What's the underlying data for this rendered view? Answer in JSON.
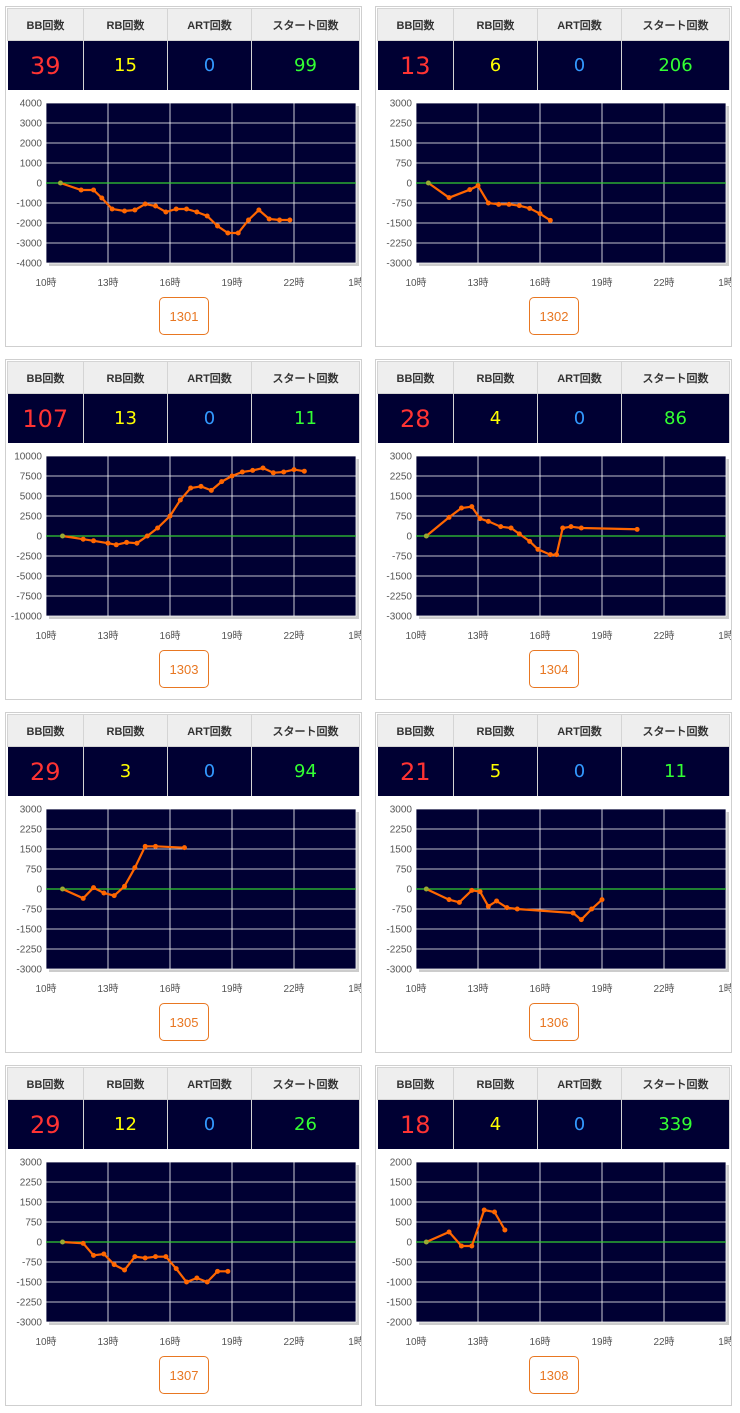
{
  "headers": {
    "bb": "BB回数",
    "rb": "RB回数",
    "art": "ART回数",
    "start": "スタート回数"
  },
  "x_ticks": [
    "10時",
    "13時",
    "16時",
    "19時",
    "22時",
    "1時"
  ],
  "colors": {
    "plot_bg": "#000033",
    "line": "#ff6600",
    "zero_line": "#33cc33",
    "bb": "#ff3333",
    "rb": "#ffff00",
    "art": "#3399ff",
    "start": "#33ff33"
  },
  "machines": [
    {
      "id": "1301",
      "bb": "39",
      "rb": "15",
      "art": "0",
      "start": "99",
      "y_ticks": [
        "4000",
        "3000",
        "2000",
        "1000",
        "0",
        "-1000",
        "-2000",
        "-3000",
        "-4000"
      ]
    },
    {
      "id": "1302",
      "bb": "13",
      "rb": "6",
      "art": "0",
      "start": "206",
      "y_ticks": [
        "3000",
        "2250",
        "1500",
        "750",
        "0",
        "-750",
        "-1500",
        "-2250",
        "-3000"
      ]
    },
    {
      "id": "1303",
      "bb": "107",
      "rb": "13",
      "art": "0",
      "start": "11",
      "y_ticks": [
        "10000",
        "7500",
        "5000",
        "2500",
        "0",
        "-2500",
        "-5000",
        "-7500",
        "-10000"
      ]
    },
    {
      "id": "1304",
      "bb": "28",
      "rb": "4",
      "art": "0",
      "start": "86",
      "y_ticks": [
        "3000",
        "2250",
        "1500",
        "750",
        "0",
        "-750",
        "-1500",
        "-2250",
        "-3000"
      ]
    },
    {
      "id": "1305",
      "bb": "29",
      "rb": "3",
      "art": "0",
      "start": "94",
      "y_ticks": [
        "3000",
        "2250",
        "1500",
        "750",
        "0",
        "-750",
        "-1500",
        "-2250",
        "-3000"
      ]
    },
    {
      "id": "1306",
      "bb": "21",
      "rb": "5",
      "art": "0",
      "start": "11",
      "y_ticks": [
        "3000",
        "2250",
        "1500",
        "750",
        "0",
        "-750",
        "-1500",
        "-2250",
        "-3000"
      ]
    },
    {
      "id": "1307",
      "bb": "29",
      "rb": "12",
      "art": "0",
      "start": "26",
      "y_ticks": [
        "3000",
        "2250",
        "1500",
        "750",
        "0",
        "-750",
        "-1500",
        "-2250",
        "-3000"
      ]
    },
    {
      "id": "1308",
      "bb": "18",
      "rb": "4",
      "art": "0",
      "start": "339",
      "y_ticks": [
        "2000",
        "1500",
        "1000",
        "500",
        "0",
        "-500",
        "-1000",
        "-1500",
        "-2000"
      ]
    }
  ],
  "chart_data": [
    {
      "type": "line",
      "x_axis": "hour",
      "x_ticks": [
        10,
        13,
        16,
        19,
        22,
        25
      ],
      "ylim": [
        -4000,
        4000
      ],
      "x": [
        10.7,
        11.7,
        12.3,
        12.7,
        13.2,
        13.8,
        14.3,
        14.8,
        15.3,
        15.8,
        16.3,
        16.8,
        17.3,
        17.8,
        18.3,
        18.8,
        19.3,
        19.8,
        20.3,
        20.8,
        21.3,
        21.8
      ],
      "y": [
        0,
        -350,
        -350,
        -750,
        -1300,
        -1400,
        -1350,
        -1050,
        -1150,
        -1450,
        -1300,
        -1300,
        -1450,
        -1650,
        -2150,
        -2500,
        -2500,
        -1850,
        -1350,
        -1800,
        -1850,
        -1850
      ]
    },
    {
      "type": "line",
      "x_axis": "hour",
      "x_ticks": [
        10,
        13,
        16,
        19,
        22,
        25
      ],
      "ylim": [
        -3000,
        3000
      ],
      "x": [
        10.6,
        11.6,
        12.6,
        13.0,
        13.5,
        14.0,
        14.5,
        15.0,
        15.5,
        16.0,
        16.5
      ],
      "y": [
        0,
        -550,
        -250,
        -100,
        -750,
        -800,
        -800,
        -850,
        -950,
        -1150,
        -1400
      ]
    },
    {
      "type": "line",
      "x_axis": "hour",
      "x_ticks": [
        10,
        13,
        16,
        19,
        22,
        25
      ],
      "ylim": [
        -10000,
        10000
      ],
      "x": [
        10.8,
        11.8,
        12.3,
        13.0,
        13.4,
        13.9,
        14.4,
        14.9,
        15.4,
        16.0,
        16.5,
        17.0,
        17.5,
        18.0,
        18.5,
        19.0,
        19.5,
        20.0,
        20.5,
        21.0,
        21.5,
        22.0,
        22.5
      ],
      "y": [
        0,
        -400,
        -600,
        -900,
        -1100,
        -800,
        -900,
        0,
        1000,
        2500,
        4500,
        6000,
        6200,
        5700,
        6800,
        7500,
        8000,
        8200,
        8500,
        7900,
        8000,
        8300,
        8100
      ],
      "x_points": [
        10.8,
        11.8,
        12.3,
        13.0,
        13.4,
        13.9,
        14.4,
        14.9,
        15.4,
        16.0,
        16.5,
        17.0,
        17.5,
        18.0,
        18.5,
        19.0,
        19.5,
        20.0,
        20.5,
        21.0,
        21.5,
        22.0,
        22.5
      ]
    },
    {
      "type": "line",
      "x_axis": "hour",
      "x_ticks": [
        10,
        13,
        16,
        19,
        22,
        25
      ],
      "ylim": [
        -3000,
        3000
      ],
      "x": [
        10.5,
        11.6,
        12.2,
        12.7,
        13.1,
        13.5,
        14.1,
        14.6,
        15.0,
        15.5,
        15.9,
        16.5,
        16.8,
        17.1,
        17.5,
        18.0,
        20.7
      ],
      "y": [
        0,
        700,
        1050,
        1100,
        650,
        550,
        350,
        300,
        80,
        -200,
        -500,
        -700,
        -700,
        300,
        350,
        300,
        250
      ]
    },
    {
      "type": "line",
      "x_axis": "hour",
      "x_ticks": [
        10,
        13,
        16,
        19,
        22,
        25
      ],
      "ylim": [
        -3000,
        3000
      ],
      "x": [
        10.8,
        11.8,
        12.3,
        12.8,
        13.3,
        13.8,
        14.3,
        14.8,
        15.3,
        16.7
      ],
      "y": [
        0,
        -350,
        50,
        -150,
        -250,
        100,
        800,
        1600,
        1600,
        1550
      ]
    },
    {
      "type": "line",
      "x_axis": "hour",
      "x_ticks": [
        10,
        13,
        16,
        19,
        22,
        25
      ],
      "ylim": [
        -3000,
        3000
      ],
      "x": [
        10.5,
        11.6,
        12.1,
        12.7,
        13.1,
        13.5,
        13.9,
        14.4,
        14.9,
        17.6,
        18.0,
        18.5,
        19.0
      ],
      "y": [
        0,
        -400,
        -500,
        -50,
        -100,
        -650,
        -450,
        -700,
        -750,
        -900,
        -1150,
        -750,
        -400
      ]
    },
    {
      "type": "line",
      "x_axis": "hour",
      "x_ticks": [
        10,
        13,
        16,
        19,
        22,
        25
      ],
      "ylim": [
        -3000,
        3000
      ],
      "x": [
        10.8,
        11.8,
        12.3,
        12.8,
        13.3,
        13.8,
        14.3,
        14.8,
        15.3,
        15.8,
        16.3,
        16.8,
        17.3,
        17.8,
        18.3,
        18.8
      ],
      "y": [
        0,
        -50,
        -500,
        -450,
        -850,
        -1050,
        -550,
        -600,
        -550,
        -550,
        -1000,
        -1500,
        -1350,
        -1500,
        -1100,
        -1100
      ]
    },
    {
      "type": "line",
      "x_axis": "hour",
      "x_ticks": [
        10,
        13,
        16,
        19,
        22,
        25
      ],
      "ylim": [
        -2000,
        2000
      ],
      "x": [
        10.5,
        11.6,
        12.2,
        12.7,
        13.3,
        13.8,
        14.3
      ],
      "y": [
        0,
        250,
        -100,
        -100,
        800,
        750,
        300
      ]
    }
  ]
}
